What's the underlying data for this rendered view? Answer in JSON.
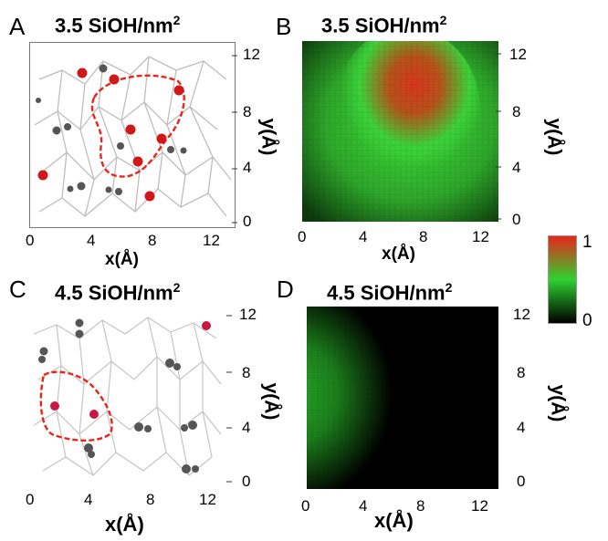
{
  "panels": [
    {
      "letter": "A",
      "title_main": "3.5 SiOH/nm",
      "title_sup": "2",
      "x_ticks": [
        "0",
        "4",
        "8",
        "12"
      ],
      "y_ticks": [
        "12",
        "8",
        "4",
        "0"
      ],
      "xlabel": "x(Å)",
      "ylabel": "y(Å)"
    },
    {
      "letter": "B",
      "title_main": "3.5 SiOH/nm",
      "title_sup": "2",
      "x_ticks": [
        "0",
        "4",
        "8",
        "12"
      ],
      "y_ticks": [
        "12",
        "8",
        "4",
        "0"
      ],
      "xlabel": "x(Å)",
      "ylabel": "y(Å)"
    },
    {
      "letter": "C",
      "title_main": "4.5 SiOH/nm",
      "title_sup": "2",
      "x_ticks": [
        "0",
        "4",
        "8",
        "12"
      ],
      "y_ticks": [
        "12",
        "8",
        "4",
        "0"
      ],
      "xlabel": "x(Å)",
      "ylabel": "y(Å)"
    },
    {
      "letter": "D",
      "title_main": "4.5 SiOH/nm",
      "title_sup": "2",
      "x_ticks": [
        "0",
        "4",
        "8",
        "12"
      ],
      "y_ticks": [
        "12",
        "8",
        "4",
        "0"
      ],
      "xlabel": "x(Å)",
      "ylabel": "y(Å)"
    }
  ],
  "colorbar": {
    "max_label": "1",
    "min_label": "0",
    "stops": [
      "#e8251b",
      "#2fd12f",
      "#000000"
    ]
  },
  "colors": {
    "dashed_region": "#e8251b",
    "oxygen": "#d01818",
    "hydrogen": "#5a5a5a",
    "network": "#b8b8b8"
  }
}
